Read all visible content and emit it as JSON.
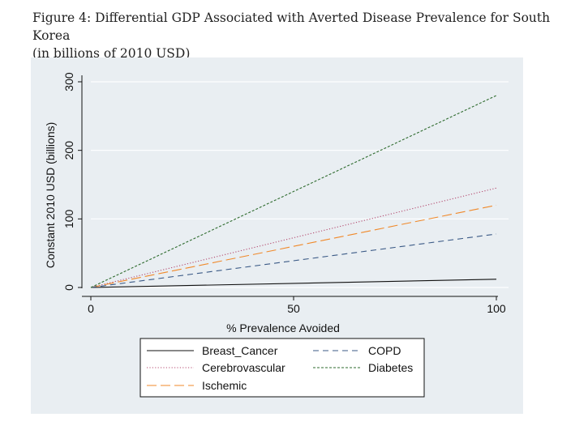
{
  "figure": {
    "caption_line1": "Figure 4: Differential GDP Associated with Averted Disease Prevalence for South Korea",
    "caption_line2": "(in billions of 2010 USD)"
  },
  "colors": {
    "background": "#e9eef2",
    "Breast_Cancer": "#111111",
    "Cerebrovascular": "#b44a6f",
    "Ischemic": "#f0892a",
    "COPD": "#3b5a86",
    "Diabetes": "#2e6b2e"
  },
  "chart_data": {
    "type": "line",
    "title": "",
    "xlabel": "% Prevalence Avoided",
    "ylabel": "Constant 2010 USD (billions)",
    "xlim": [
      0,
      100
    ],
    "ylim": [
      0,
      300
    ],
    "xticks": [
      "0",
      "50",
      "100"
    ],
    "yticks": [
      "0",
      "100",
      "200",
      "300"
    ],
    "series": [
      {
        "name": "Breast_Cancer",
        "x": [
          0,
          100
        ],
        "values": [
          0,
          12
        ],
        "dash": "solid"
      },
      {
        "name": "Cerebrovascular",
        "x": [
          0,
          100
        ],
        "values": [
          0,
          145
        ],
        "dash": "dot"
      },
      {
        "name": "Ischemic",
        "x": [
          0,
          100
        ],
        "values": [
          0,
          120
        ],
        "dash": "longdash"
      },
      {
        "name": "COPD",
        "x": [
          0,
          100
        ],
        "values": [
          0,
          78
        ],
        "dash": "dash"
      },
      {
        "name": "Diabetes",
        "x": [
          0,
          100
        ],
        "values": [
          0,
          280
        ],
        "dash": "shortdash"
      }
    ],
    "legend": {
      "position": "bottom-center",
      "columns": 2,
      "entries": [
        "Breast_Cancer",
        "COPD",
        "Cerebrovascular",
        "Diabetes",
        "Ischemic"
      ]
    }
  }
}
